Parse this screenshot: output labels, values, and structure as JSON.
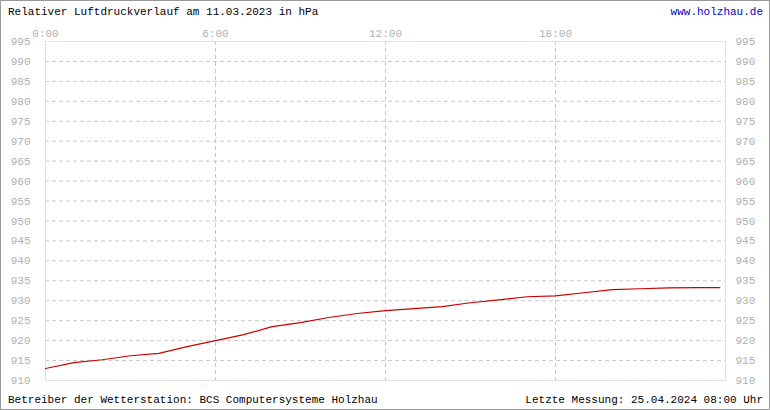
{
  "chart_data": {
    "type": "line",
    "title": "Relativer Luftdruckverlauf am 11.03.2023 in hPa",
    "annotations": [
      "www.holzhau.de",
      "Betreiber der Wetterstation: BCS Computersysteme Holzhau",
      "Letzte Messung: 25.04.2024 08:00 Uhr"
    ],
    "x": [
      0,
      1,
      2,
      3,
      4,
      5,
      6,
      7,
      8,
      9,
      10,
      11,
      12,
      13,
      14,
      15,
      16,
      17,
      18,
      19,
      20,
      21,
      22,
      23,
      23.8
    ],
    "series": [
      {
        "name": "Luftdruck",
        "color": "#cc0000",
        "values": [
          913,
          914.5,
          915.2,
          916.2,
          916.8,
          918.5,
          920,
          921.5,
          923.5,
          924.5,
          925.8,
          926.8,
          927.5,
          928,
          928.5,
          929.5,
          930.2,
          931,
          931.2,
          932,
          932.8,
          933,
          933.2,
          933.3,
          933.3
        ]
      }
    ],
    "xlim": [
      0,
      24
    ],
    "xticks": [
      {
        "value": 0,
        "label": "0:00"
      },
      {
        "value": 6,
        "label": "6:00"
      },
      {
        "value": 12,
        "label": "12:00"
      },
      {
        "value": 18,
        "label": "18:00"
      }
    ],
    "ylim": [
      910,
      995
    ],
    "yticks": [
      910,
      915,
      920,
      925,
      930,
      935,
      940,
      945,
      950,
      955,
      960,
      965,
      970,
      975,
      980,
      985,
      990,
      995
    ],
    "grid": true
  }
}
